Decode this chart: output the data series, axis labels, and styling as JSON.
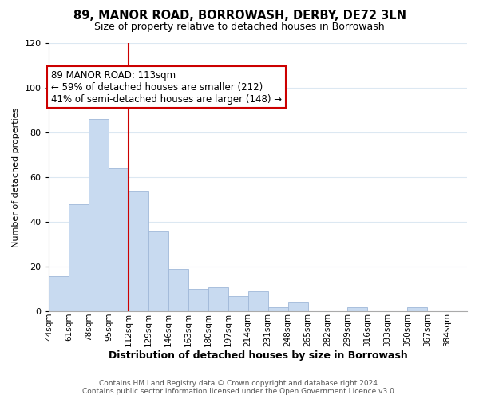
{
  "title": "89, MANOR ROAD, BORROWASH, DERBY, DE72 3LN",
  "subtitle": "Size of property relative to detached houses in Borrowash",
  "xlabel": "Distribution of detached houses by size in Borrowash",
  "ylabel": "Number of detached properties",
  "bin_labels": [
    "44sqm",
    "61sqm",
    "78sqm",
    "95sqm",
    "112sqm",
    "129sqm",
    "146sqm",
    "163sqm",
    "180sqm",
    "197sqm",
    "214sqm",
    "231sqm",
    "248sqm",
    "265sqm",
    "282sqm",
    "299sqm",
    "316sqm",
    "333sqm",
    "350sqm",
    "367sqm",
    "384sqm"
  ],
  "bar_heights": [
    16,
    48,
    86,
    64,
    54,
    36,
    19,
    10,
    11,
    7,
    9,
    2,
    4,
    0,
    0,
    2,
    0,
    0,
    2,
    0,
    0
  ],
  "bar_color": "#c8daf0",
  "bar_edge_color": "#a0b8d8",
  "vline_x": 4,
  "vline_color": "#cc0000",
  "ylim": [
    0,
    120
  ],
  "yticks": [
    0,
    20,
    40,
    60,
    80,
    100,
    120
  ],
  "annotation_text": "89 MANOR ROAD: 113sqm\n← 59% of detached houses are smaller (212)\n41% of semi-detached houses are larger (148) →",
  "annotation_box_color": "#ffffff",
  "annotation_box_edge": "#cc0000",
  "footer_line1": "Contains HM Land Registry data © Crown copyright and database right 2024.",
  "footer_line2": "Contains public sector information licensed under the Open Government Licence v3.0.",
  "background_color": "#ffffff",
  "grid_color": "#dce8f2"
}
